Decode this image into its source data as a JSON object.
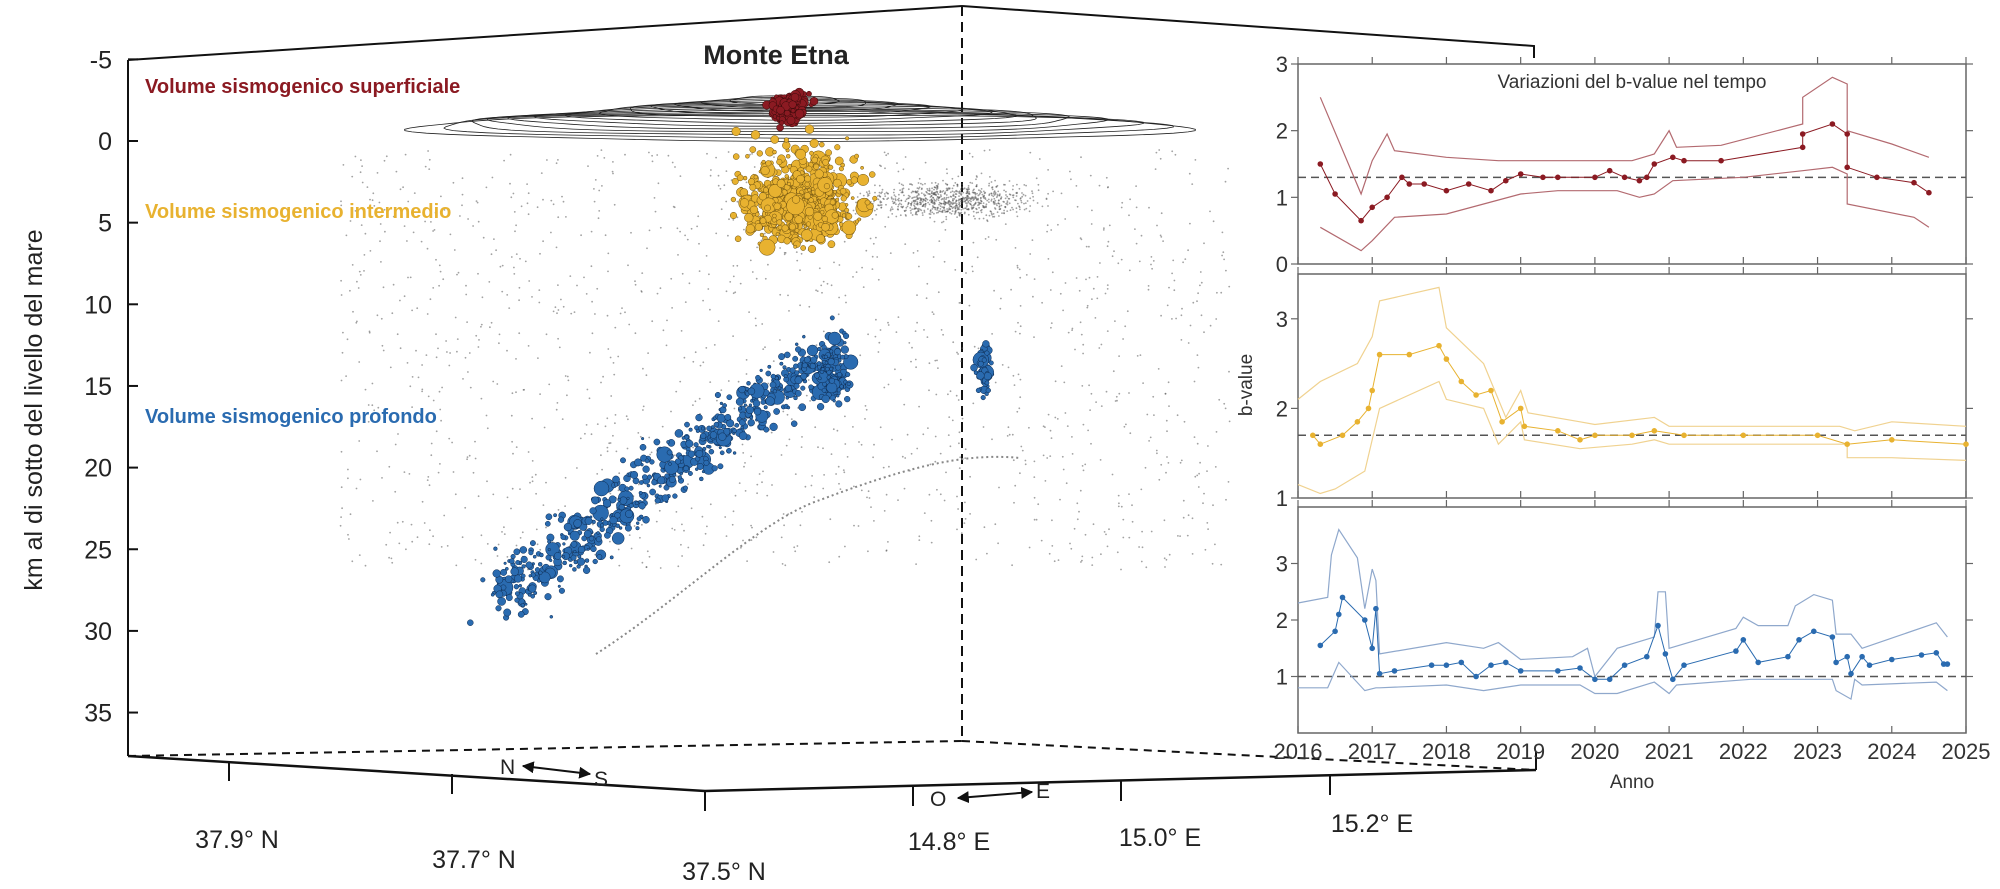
{
  "figure": {
    "title": "Monte Etna",
    "volume_labels": {
      "superficial": "Volume sismogenico superficiale",
      "intermediate": "Volume sismogenico intermedio",
      "deep": "Volume sismogenico profondo"
    },
    "colors": {
      "superficial": "#8B1A22",
      "intermediate": "#E8B230",
      "deep": "#2A6BB0",
      "background_events": "#555555"
    },
    "direction_labels": {
      "north": "N",
      "south": "S",
      "west": "O",
      "east": "E"
    }
  },
  "chart_data": [
    {
      "type": "scatter",
      "title": "Monte Etna",
      "ylabel": "km al di sotto del livello del mare",
      "depth_ticks": [
        "-5",
        "0",
        "5",
        "10",
        "15",
        "20",
        "25",
        "30",
        "35"
      ],
      "ylim": [
        -5,
        35
      ],
      "lat_ticks": [
        "37.9° N",
        "37.7° N",
        "37.5° N"
      ],
      "lon_ticks": [
        "14.8° E",
        "15.0° E",
        "15.2° E"
      ],
      "series": [
        {
          "name": "Volume sismogenico superficiale",
          "depth_range_km": [
            -3,
            0
          ]
        },
        {
          "name": "Volume sismogenico intermedio",
          "depth_range_km": [
            0,
            7
          ]
        },
        {
          "name": "Volume sismogenico profondo",
          "depth_range_km": [
            11,
            31
          ]
        }
      ]
    },
    {
      "type": "line",
      "title": "Variazioni del b-value nel tempo",
      "xlabel": "Anno",
      "ylabel": "b-value",
      "xlim": [
        2016,
        2025
      ],
      "x_ticks": [
        "2016",
        "2017",
        "2018",
        "2019",
        "2020",
        "2021",
        "2022",
        "2023",
        "2024",
        "2025"
      ],
      "panels": [
        {
          "name": "Volume sismogenico superficiale",
          "ylim": [
            0,
            3
          ],
          "y_ticks": [
            "0",
            "1",
            "2",
            "3"
          ],
          "reference": 1.3,
          "b": [
            [
              2016.3,
              1.5
            ],
            [
              2016.5,
              1.05
            ],
            [
              2016.85,
              0.65
            ],
            [
              2017.0,
              0.85
            ],
            [
              2017.2,
              1.0
            ],
            [
              2017.4,
              1.3
            ],
            [
              2017.5,
              1.2
            ],
            [
              2017.7,
              1.2
            ],
            [
              2018.0,
              1.1
            ],
            [
              2018.3,
              1.2
            ],
            [
              2018.6,
              1.1
            ],
            [
              2018.8,
              1.25
            ],
            [
              2019.0,
              1.35
            ],
            [
              2019.3,
              1.3
            ],
            [
              2019.5,
              1.3
            ],
            [
              2020.0,
              1.3
            ],
            [
              2020.2,
              1.4
            ],
            [
              2020.4,
              1.3
            ],
            [
              2020.6,
              1.25
            ],
            [
              2020.7,
              1.3
            ],
            [
              2020.8,
              1.5
            ],
            [
              2021.05,
              1.6
            ],
            [
              2021.2,
              1.55
            ],
            [
              2021.7,
              1.55
            ],
            [
              2022.8,
              1.75
            ],
            [
              2022.8,
              1.95
            ],
            [
              2023.2,
              2.1
            ],
            [
              2023.4,
              1.95
            ],
            [
              2023.4,
              1.45
            ],
            [
              2023.8,
              1.3
            ],
            [
              2024.3,
              1.22
            ],
            [
              2024.5,
              1.07
            ]
          ],
          "upper": [
            [
              2016.3,
              2.5
            ],
            [
              2016.85,
              1.05
            ],
            [
              2017.0,
              1.55
            ],
            [
              2017.2,
              1.95
            ],
            [
              2017.3,
              1.7
            ],
            [
              2018.0,
              1.6
            ],
            [
              2018.7,
              1.55
            ],
            [
              2019.5,
              1.55
            ],
            [
              2020.3,
              1.55
            ],
            [
              2020.5,
              1.55
            ],
            [
              2020.8,
              1.65
            ],
            [
              2021.0,
              2.0
            ],
            [
              2021.1,
              1.75
            ],
            [
              2021.7,
              1.78
            ],
            [
              2022.8,
              2.1
            ],
            [
              2022.8,
              2.5
            ],
            [
              2023.2,
              2.8
            ],
            [
              2023.4,
              2.7
            ],
            [
              2023.4,
              2.0
            ],
            [
              2024.0,
              1.8
            ],
            [
              2024.5,
              1.6
            ]
          ],
          "lower": [
            [
              2016.3,
              0.55
            ],
            [
              2016.85,
              0.2
            ],
            [
              2017.0,
              0.35
            ],
            [
              2017.3,
              0.7
            ],
            [
              2018.0,
              0.75
            ],
            [
              2018.5,
              0.9
            ],
            [
              2019.0,
              1.05
            ],
            [
              2019.5,
              1.1
            ],
            [
              2020.3,
              1.1
            ],
            [
              2020.6,
              1.0
            ],
            [
              2020.8,
              1.05
            ],
            [
              2021.05,
              1.25
            ],
            [
              2022.0,
              1.3
            ],
            [
              2022.8,
              1.4
            ],
            [
              2023.2,
              1.45
            ],
            [
              2023.4,
              1.35
            ],
            [
              2023.4,
              0.9
            ],
            [
              2024.3,
              0.7
            ],
            [
              2024.5,
              0.55
            ]
          ]
        },
        {
          "name": "Volume sismogenico intermedio",
          "ylim": [
            1,
            3.5
          ],
          "y_ticks": [
            "1",
            "2",
            "3"
          ],
          "reference": 1.7,
          "b": [
            [
              2016.2,
              1.7
            ],
            [
              2016.3,
              1.6
            ],
            [
              2016.6,
              1.7
            ],
            [
              2016.8,
              1.85
            ],
            [
              2016.95,
              2.0
            ],
            [
              2017.0,
              2.2
            ],
            [
              2017.1,
              2.6
            ],
            [
              2017.5,
              2.6
            ],
            [
              2017.9,
              2.7
            ],
            [
              2018.0,
              2.55
            ],
            [
              2018.2,
              2.3
            ],
            [
              2018.4,
              2.15
            ],
            [
              2018.6,
              2.2
            ],
            [
              2018.75,
              1.85
            ],
            [
              2019.0,
              2.0
            ],
            [
              2019.05,
              1.8
            ],
            [
              2019.5,
              1.75
            ],
            [
              2019.8,
              1.65
            ],
            [
              2020.0,
              1.7
            ],
            [
              2020.5,
              1.7
            ],
            [
              2020.8,
              1.75
            ],
            [
              2021.2,
              1.7
            ],
            [
              2022.0,
              1.7
            ],
            [
              2023.0,
              1.7
            ],
            [
              2023.4,
              1.6
            ],
            [
              2024.0,
              1.65
            ],
            [
              2025.0,
              1.6
            ]
          ],
          "upper": [
            [
              2016.0,
              2.1
            ],
            [
              2016.3,
              2.3
            ],
            [
              2016.8,
              2.5
            ],
            [
              2017.0,
              2.8
            ],
            [
              2017.1,
              3.2
            ],
            [
              2017.9,
              3.35
            ],
            [
              2018.0,
              2.9
            ],
            [
              2018.5,
              2.5
            ],
            [
              2018.8,
              1.9
            ],
            [
              2019.0,
              2.2
            ],
            [
              2019.1,
              1.95
            ],
            [
              2019.8,
              1.85
            ],
            [
              2020.0,
              1.82
            ],
            [
              2020.8,
              1.9
            ],
            [
              2021.0,
              1.8
            ],
            [
              2022.0,
              1.8
            ],
            [
              2023.3,
              1.8
            ],
            [
              2023.5,
              1.75
            ],
            [
              2024.0,
              1.85
            ],
            [
              2025.0,
              1.8
            ]
          ],
          "lower": [
            [
              2016.0,
              1.15
            ],
            [
              2016.3,
              1.05
            ],
            [
              2016.5,
              1.1
            ],
            [
              2016.9,
              1.3
            ],
            [
              2017.1,
              2.0
            ],
            [
              2017.9,
              2.3
            ],
            [
              2018.0,
              2.1
            ],
            [
              2018.5,
              2.0
            ],
            [
              2018.7,
              1.6
            ],
            [
              2019.0,
              1.85
            ],
            [
              2019.05,
              1.65
            ],
            [
              2019.8,
              1.55
            ],
            [
              2020.5,
              1.6
            ],
            [
              2020.8,
              1.65
            ],
            [
              2021.0,
              1.6
            ],
            [
              2022.0,
              1.6
            ],
            [
              2023.4,
              1.6
            ],
            [
              2023.4,
              1.45
            ],
            [
              2024.0,
              1.45
            ],
            [
              2025.0,
              1.42
            ]
          ]
        },
        {
          "name": "Volume sismogenico profondo",
          "ylim": [
            0,
            4
          ],
          "y_ticks": [
            "1",
            "2",
            "3"
          ],
          "reference": 1.0,
          "b": [
            [
              2016.3,
              1.55
            ],
            [
              2016.5,
              1.8
            ],
            [
              2016.55,
              2.1
            ],
            [
              2016.6,
              2.4
            ],
            [
              2016.9,
              2.0
            ],
            [
              2017.0,
              1.5
            ],
            [
              2017.05,
              2.2
            ],
            [
              2017.1,
              1.05
            ],
            [
              2017.3,
              1.1
            ],
            [
              2017.8,
              1.2
            ],
            [
              2018.0,
              1.2
            ],
            [
              2018.2,
              1.25
            ],
            [
              2018.4,
              1.0
            ],
            [
              2018.6,
              1.2
            ],
            [
              2018.8,
              1.25
            ],
            [
              2019.0,
              1.1
            ],
            [
              2019.5,
              1.1
            ],
            [
              2019.8,
              1.15
            ],
            [
              2020.0,
              0.95
            ],
            [
              2020.2,
              0.95
            ],
            [
              2020.4,
              1.2
            ],
            [
              2020.7,
              1.35
            ],
            [
              2020.85,
              1.9
            ],
            [
              2020.95,
              1.4
            ],
            [
              2021.05,
              0.95
            ],
            [
              2021.2,
              1.2
            ],
            [
              2021.9,
              1.45
            ],
            [
              2022.0,
              1.65
            ],
            [
              2022.2,
              1.25
            ],
            [
              2022.6,
              1.35
            ],
            [
              2022.75,
              1.65
            ],
            [
              2022.95,
              1.8
            ],
            [
              2023.2,
              1.7
            ],
            [
              2023.25,
              1.25
            ],
            [
              2023.4,
              1.35
            ],
            [
              2023.45,
              1.05
            ],
            [
              2023.6,
              1.35
            ],
            [
              2023.7,
              1.2
            ],
            [
              2024.0,
              1.3
            ],
            [
              2024.4,
              1.38
            ],
            [
              2024.6,
              1.42
            ],
            [
              2024.7,
              1.22
            ],
            [
              2024.75,
              1.22
            ]
          ],
          "upper": [
            [
              2016.0,
              2.3
            ],
            [
              2016.4,
              2.4
            ],
            [
              2016.45,
              3.15
            ],
            [
              2016.55,
              3.6
            ],
            [
              2016.8,
              3.1
            ],
            [
              2016.9,
              2.2
            ],
            [
              2017.0,
              2.9
            ],
            [
              2017.05,
              2.7
            ],
            [
              2017.1,
              1.4
            ],
            [
              2018.0,
              1.6
            ],
            [
              2018.5,
              1.5
            ],
            [
              2018.7,
              1.6
            ],
            [
              2019.0,
              1.3
            ],
            [
              2019.7,
              1.35
            ],
            [
              2019.9,
              1.5
            ],
            [
              2020.0,
              1.0
            ],
            [
              2020.3,
              1.5
            ],
            [
              2020.8,
              1.7
            ],
            [
              2020.85,
              2.5
            ],
            [
              2020.95,
              2.5
            ],
            [
              2021.0,
              1.5
            ],
            [
              2021.9,
              1.85
            ],
            [
              2022.0,
              2.05
            ],
            [
              2022.2,
              1.9
            ],
            [
              2022.6,
              1.9
            ],
            [
              2022.7,
              2.25
            ],
            [
              2022.95,
              2.45
            ],
            [
              2023.2,
              2.35
            ],
            [
              2023.25,
              1.75
            ],
            [
              2023.45,
              1.75
            ],
            [
              2023.6,
              1.5
            ],
            [
              2024.6,
              1.95
            ],
            [
              2024.75,
              1.7
            ]
          ],
          "lower": [
            [
              2016.0,
              0.8
            ],
            [
              2016.4,
              0.8
            ],
            [
              2016.55,
              1.25
            ],
            [
              2016.9,
              0.75
            ],
            [
              2017.05,
              0.8
            ],
            [
              2017.1,
              0.8
            ],
            [
              2018.0,
              0.85
            ],
            [
              2018.5,
              0.75
            ],
            [
              2019.0,
              0.85
            ],
            [
              2019.8,
              0.85
            ],
            [
              2020.0,
              0.7
            ],
            [
              2020.3,
              0.7
            ],
            [
              2020.8,
              0.9
            ],
            [
              2021.0,
              0.7
            ],
            [
              2021.1,
              0.85
            ],
            [
              2022.1,
              0.95
            ],
            [
              2022.2,
              0.95
            ],
            [
              2023.2,
              0.95
            ],
            [
              2023.25,
              0.75
            ],
            [
              2023.45,
              0.6
            ],
            [
              2023.5,
              0.95
            ],
            [
              2023.6,
              0.85
            ],
            [
              2024.6,
              0.9
            ],
            [
              2024.75,
              0.75
            ]
          ]
        }
      ]
    }
  ]
}
